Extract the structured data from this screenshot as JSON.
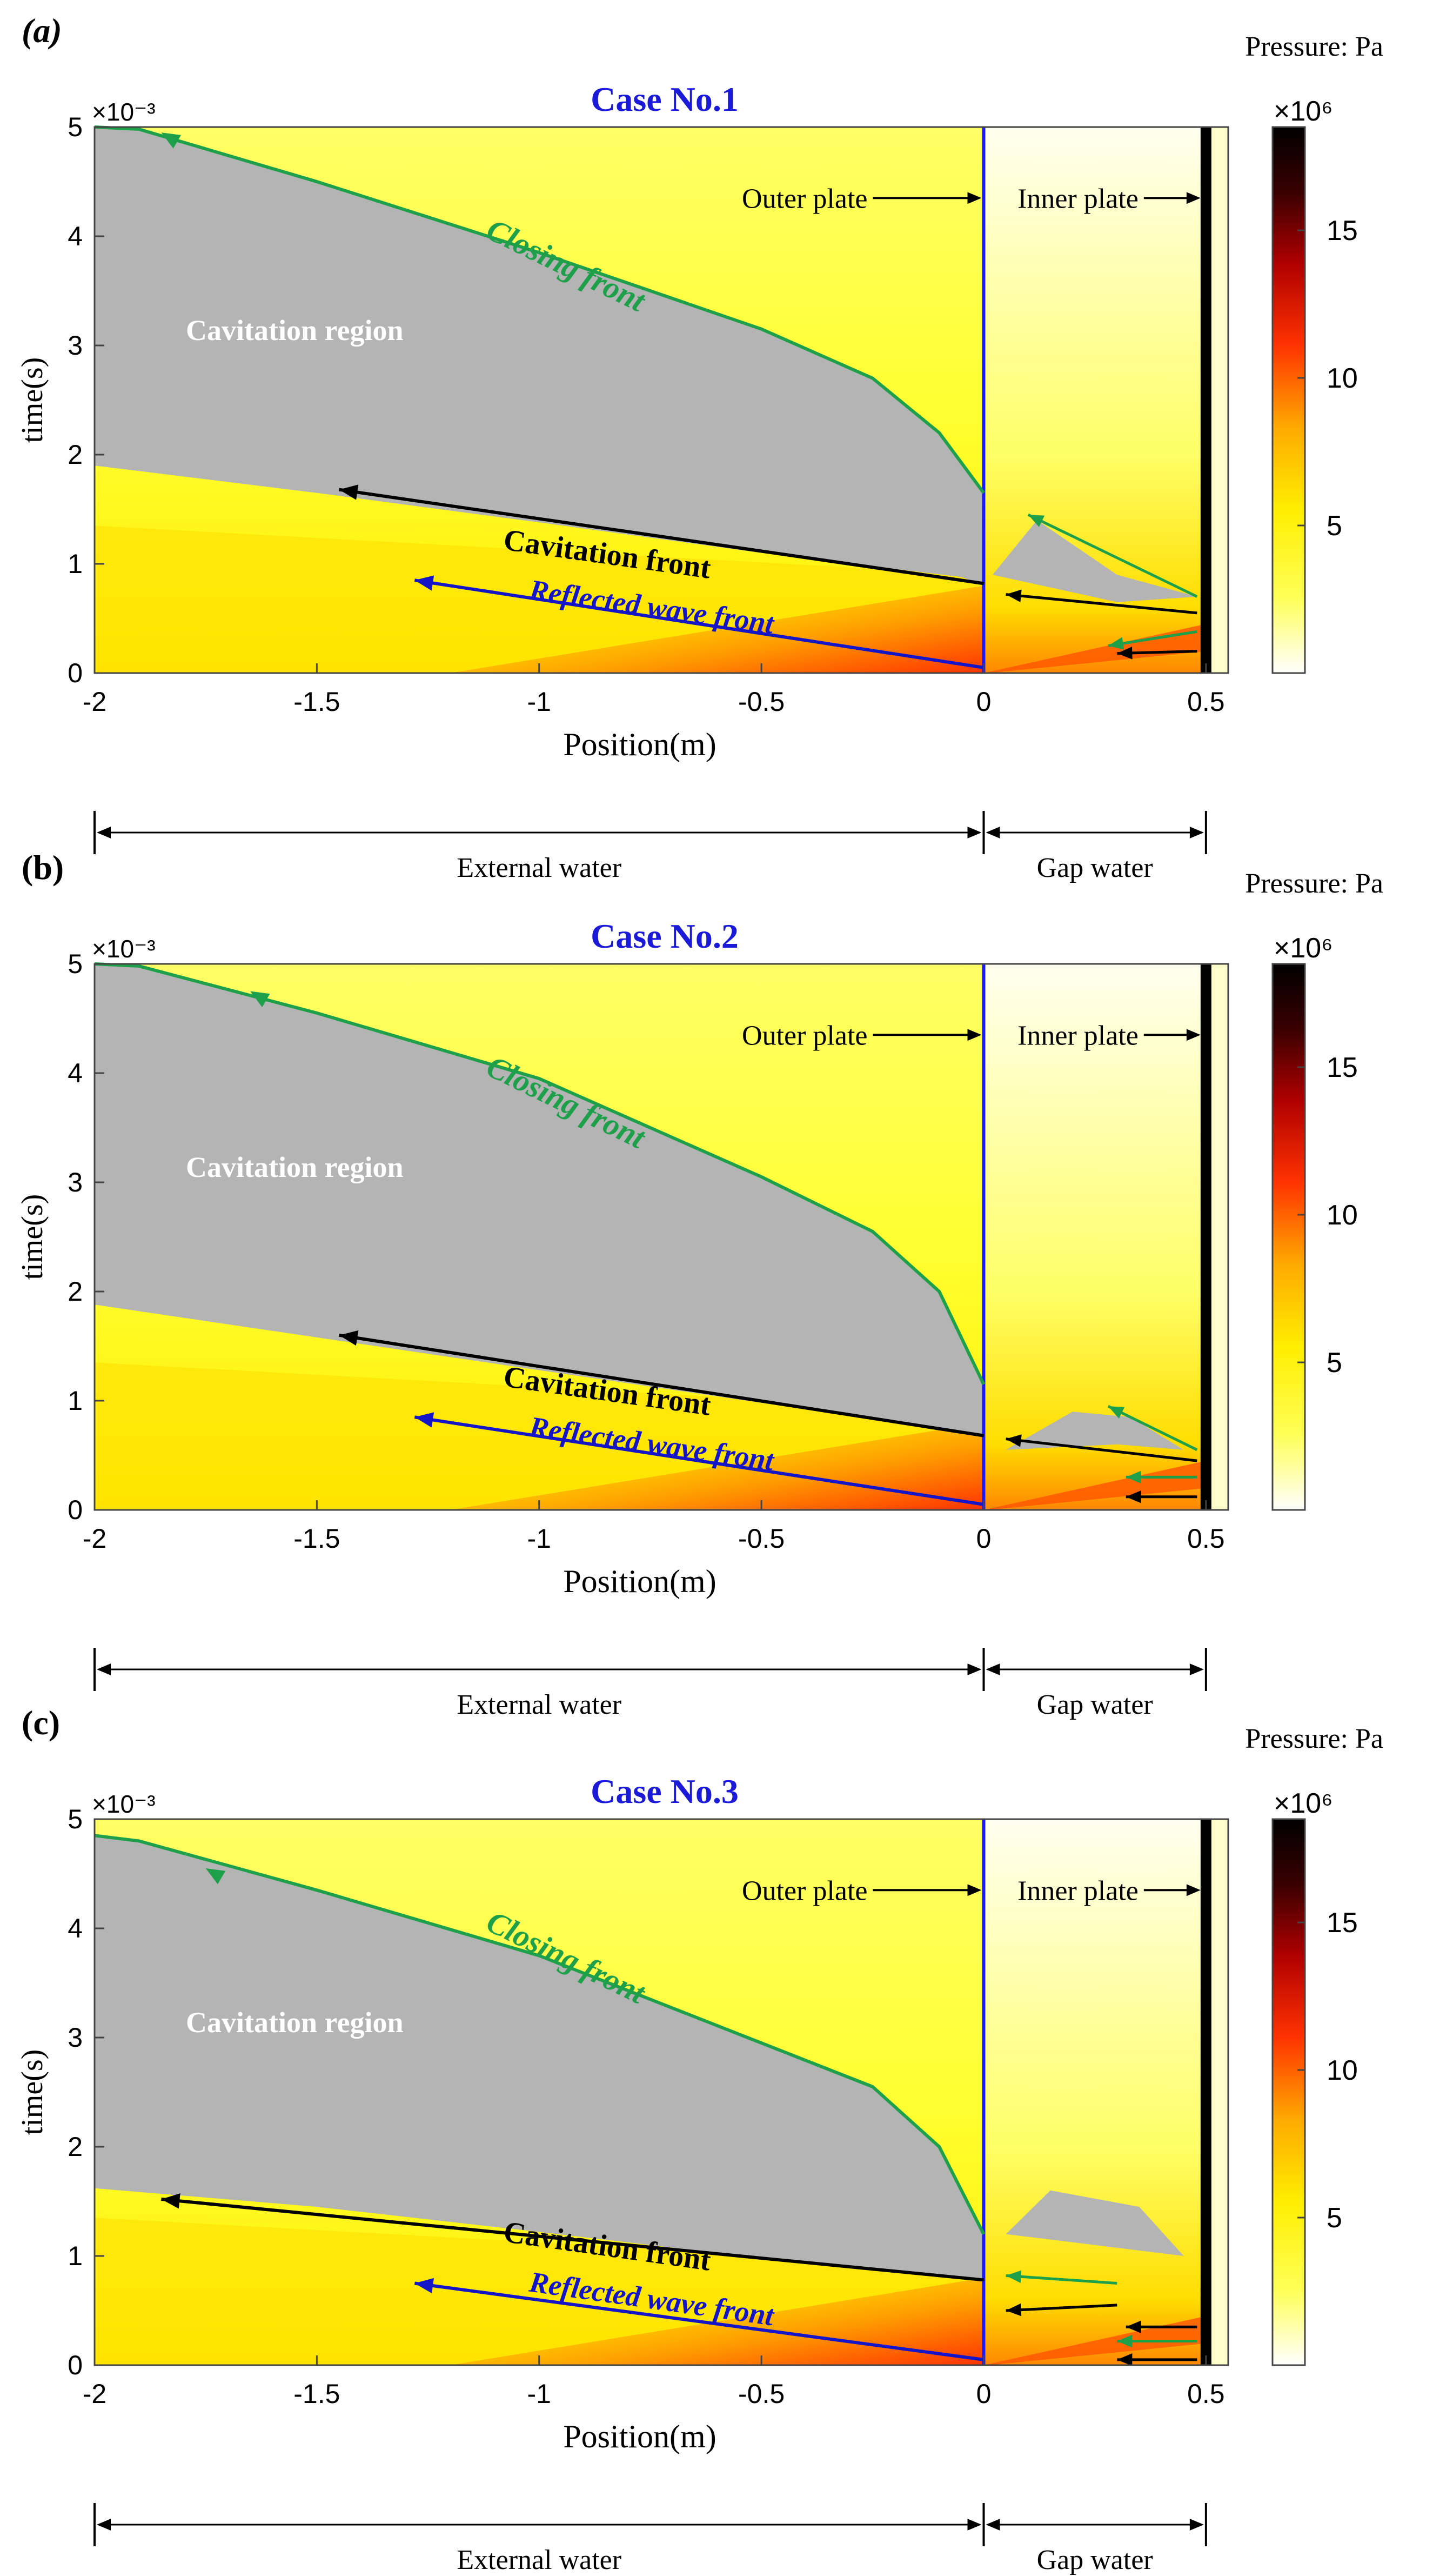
{
  "colors": {
    "background": "#ffffff",
    "cavitation": "#b4b4b4",
    "closing_front": "#1ea04a",
    "cavitation_front": "#000000",
    "reflected_front": "#1515c8",
    "outer_plate": "#1a1aff",
    "inner_plate": "#000000",
    "title": "#1a1ad8",
    "colormap": [
      "#ffffff",
      "#ffff33",
      "#ffee00",
      "#ff9900",
      "#ff3300",
      "#aa0000",
      "#3a0000",
      "#000000"
    ]
  },
  "chart_data": [
    {
      "type": "heatmap",
      "panel_label": "(a)",
      "title": "Case No.1",
      "xlabel": "Position(m)",
      "ylabel": "time(s)",
      "xlim": [
        -2,
        0.55
      ],
      "ylim": [
        0,
        5
      ],
      "x_ticks": [
        "-2",
        "-1.5",
        "-1",
        "-0.5",
        "0",
        "0.5"
      ],
      "y_ticks": [
        "0",
        "1",
        "2",
        "3",
        "4",
        "5"
      ],
      "y_exponent": "×10⁻³",
      "colorbar": {
        "unit": "Pressure: Pa",
        "exponent": "×10⁶",
        "ticks": [
          "5",
          "10",
          "15"
        ],
        "range": [
          0,
          18.5
        ]
      },
      "regions": {
        "external": "External water",
        "gap": "Gap water"
      },
      "labels": {
        "cavitation_region": "Cavitation region",
        "closing_front": "Closing front",
        "cavitation_front": "Cavitation front",
        "reflected_front": "Reflected wave front",
        "outer_plate": "Outer plate",
        "inner_plate": "Inner plate"
      },
      "cavitation_lower": [
        [
          -2,
          1.9
        ],
        [
          -1.5,
          1.65
        ],
        [
          -1,
          1.38
        ],
        [
          -0.5,
          1.1
        ],
        [
          -0.05,
          0.88
        ],
        [
          0,
          0.8
        ]
      ],
      "cavitation_upper": [
        [
          -2,
          5
        ],
        [
          -1.9,
          4.98
        ],
        [
          -1.5,
          4.5
        ],
        [
          -1,
          3.85
        ],
        [
          -0.5,
          3.15
        ],
        [
          -0.25,
          2.7
        ],
        [
          -0.1,
          2.2
        ],
        [
          0,
          1.65
        ]
      ],
      "cavitation_front_arrow": [
        [
          0,
          0.82
        ],
        [
          -1.45,
          1.68
        ]
      ],
      "reflected_front_arrow": [
        [
          0,
          0.05
        ],
        [
          -1.28,
          0.85
        ]
      ],
      "closing_front_arrow": [
        [
          0,
          1.65
        ],
        [
          -1.85,
          4.95
        ]
      ],
      "gap_cavity": [
        [
          0.02,
          0.9
        ],
        [
          0.12,
          1.4
        ],
        [
          0.3,
          0.9
        ],
        [
          0.48,
          0.7
        ],
        [
          0.3,
          0.65
        ]
      ],
      "gap_green_arrows": [
        [
          [
            0.48,
            0.38
          ],
          [
            0.28,
            0.25
          ]
        ],
        [
          [
            0.48,
            0.7
          ],
          [
            0.1,
            1.45
          ]
        ]
      ],
      "gap_black_arrows": [
        [
          [
            0.48,
            0.2
          ],
          [
            0.3,
            0.18
          ]
        ],
        [
          [
            0.48,
            0.55
          ],
          [
            0.05,
            0.72
          ]
        ]
      ],
      "inner_plate_x": 0.5,
      "outer_plate_x": 0
    },
    {
      "type": "heatmap",
      "panel_label": "(b)",
      "title": "Case No.2",
      "xlabel": "Position(m)",
      "ylabel": "time(s)",
      "xlim": [
        -2,
        0.55
      ],
      "ylim": [
        0,
        5
      ],
      "x_ticks": [
        "-2",
        "-1.5",
        "-1",
        "-0.5",
        "0",
        "0.5"
      ],
      "y_ticks": [
        "0",
        "1",
        "2",
        "3",
        "4",
        "5"
      ],
      "y_exponent": "×10⁻³",
      "colorbar": {
        "unit": "Pressure: Pa",
        "exponent": "×10⁶",
        "ticks": [
          "5",
          "10",
          "15"
        ],
        "range": [
          0,
          18.5
        ]
      },
      "regions": {
        "external": "External water",
        "gap": "Gap water"
      },
      "labels": {
        "cavitation_region": "Cavitation region",
        "closing_front": "Closing front",
        "cavitation_front": "Cavitation front",
        "reflected_front": "Reflected wave front",
        "outer_plate": "Outer plate",
        "inner_plate": "Inner plate"
      },
      "cavitation_lower": [
        [
          -2,
          1.88
        ],
        [
          -1.5,
          1.58
        ],
        [
          -1,
          1.28
        ],
        [
          -0.5,
          0.98
        ],
        [
          -0.05,
          0.72
        ],
        [
          0,
          0.68
        ]
      ],
      "cavitation_upper": [
        [
          -2,
          5
        ],
        [
          -1.9,
          4.98
        ],
        [
          -1.5,
          4.55
        ],
        [
          -1,
          3.95
        ],
        [
          -0.5,
          3.05
        ],
        [
          -0.25,
          2.55
        ],
        [
          -0.1,
          2.0
        ],
        [
          0,
          1.15
        ]
      ],
      "cavitation_front_arrow": [
        [
          0,
          0.68
        ],
        [
          -1.45,
          1.6
        ]
      ],
      "reflected_front_arrow": [
        [
          0,
          0.05
        ],
        [
          -1.28,
          0.85
        ]
      ],
      "closing_front_arrow": [
        [
          0,
          1.15
        ],
        [
          -1.65,
          4.75
        ]
      ],
      "gap_cavity": [
        [
          0.05,
          0.55
        ],
        [
          0.2,
          0.9
        ],
        [
          0.33,
          0.85
        ],
        [
          0.45,
          0.55
        ],
        [
          0.3,
          0.6
        ]
      ],
      "gap_green_arrows": [
        [
          [
            0.48,
            0.3
          ],
          [
            0.32,
            0.3
          ]
        ],
        [
          [
            0.48,
            0.55
          ],
          [
            0.28,
            0.95
          ]
        ]
      ],
      "gap_black_arrows": [
        [
          [
            0.48,
            0.12
          ],
          [
            0.32,
            0.12
          ]
        ],
        [
          [
            0.48,
            0.45
          ],
          [
            0.05,
            0.65
          ]
        ]
      ],
      "inner_plate_x": 0.5,
      "outer_plate_x": 0
    },
    {
      "type": "heatmap",
      "panel_label": "(c)",
      "title": "Case No.3",
      "xlabel": "Position(m)",
      "ylabel": "time(s)",
      "xlim": [
        -2,
        0.55
      ],
      "ylim": [
        0,
        5
      ],
      "x_ticks": [
        "-2",
        "-1.5",
        "-1",
        "-0.5",
        "0",
        "0.5"
      ],
      "y_ticks": [
        "0",
        "1",
        "2",
        "3",
        "4",
        "5"
      ],
      "y_exponent": "×10⁻³",
      "colorbar": {
        "unit": "Pressure: Pa",
        "exponent": "×10⁶",
        "ticks": [
          "5",
          "10",
          "15"
        ],
        "range": [
          0,
          18.5
        ]
      },
      "regions": {
        "external": "External water",
        "gap": "Gap water"
      },
      "labels": {
        "cavitation_region": "Cavitation region",
        "closing_front": "Closing front",
        "cavitation_front": "Cavitation front",
        "reflected_front": "Reflected wave front",
        "outer_plate": "Outer plate",
        "inner_plate": "Inner plate"
      },
      "cavitation_lower": [
        [
          -2,
          1.62
        ],
        [
          -1.5,
          1.45
        ],
        [
          -1,
          1.22
        ],
        [
          -0.5,
          0.98
        ],
        [
          -0.05,
          0.8
        ],
        [
          0,
          0.78
        ]
      ],
      "cavitation_upper": [
        [
          -2,
          4.85
        ],
        [
          -1.9,
          4.8
        ],
        [
          -1.5,
          4.35
        ],
        [
          -1,
          3.75
        ],
        [
          -0.5,
          2.95
        ],
        [
          -0.25,
          2.55
        ],
        [
          -0.1,
          2.0
        ],
        [
          0,
          1.2
        ]
      ],
      "cavitation_front_arrow": [
        [
          0,
          0.78
        ],
        [
          -1.85,
          1.52
        ]
      ],
      "reflected_front_arrow": [
        [
          0,
          0.05
        ],
        [
          -1.28,
          0.75
        ]
      ],
      "closing_front_arrow": [
        [
          0,
          1.2
        ],
        [
          -1.75,
          4.55
        ]
      ],
      "gap_cavity": [
        [
          0.05,
          1.2
        ],
        [
          0.15,
          1.6
        ],
        [
          0.35,
          1.45
        ],
        [
          0.45,
          1.0
        ],
        [
          0.25,
          1.1
        ]
      ],
      "gap_green_arrows": [
        [
          [
            0.48,
            0.22
          ],
          [
            0.3,
            0.22
          ]
        ],
        [
          [
            0.3,
            0.75
          ],
          [
            0.05,
            0.82
          ]
        ]
      ],
      "gap_black_arrows": [
        [
          [
            0.48,
            0.05
          ],
          [
            0.3,
            0.05
          ]
        ],
        [
          [
            0.48,
            0.35
          ],
          [
            0.32,
            0.35
          ]
        ],
        [
          [
            0.3,
            0.55
          ],
          [
            0.05,
            0.5
          ]
        ]
      ],
      "inner_plate_x": 0.5,
      "outer_plate_x": 0
    }
  ]
}
